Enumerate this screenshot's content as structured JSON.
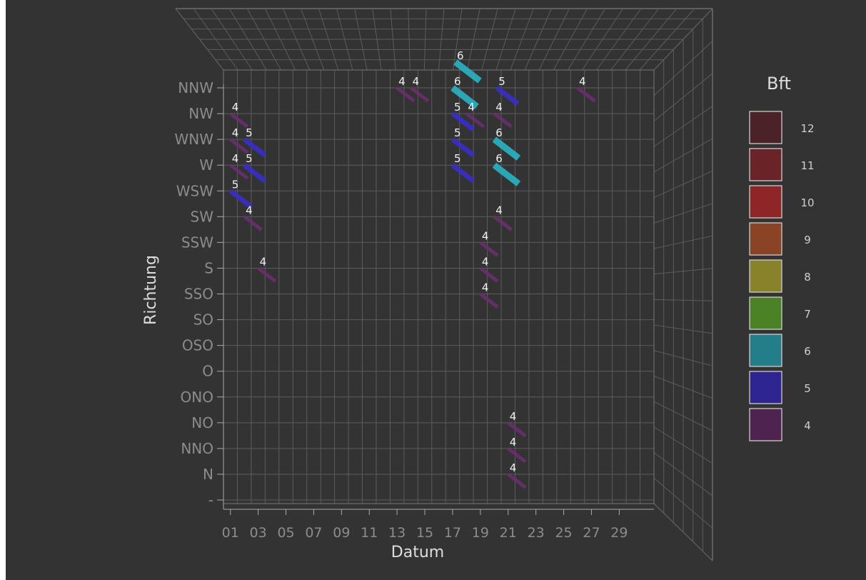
{
  "chart_data": {
    "type": "3d-bar",
    "xlabel": "Datum",
    "ylabel": "Richtung",
    "x_ticks": [
      "01",
      "03",
      "05",
      "07",
      "09",
      "11",
      "13",
      "15",
      "17",
      "19",
      "21",
      "23",
      "25",
      "27",
      "29"
    ],
    "y_ticks": [
      "-",
      "N",
      "NNO",
      "NO",
      "ONO",
      "O",
      "OSO",
      "SO",
      "SSO",
      "S",
      "SSW",
      "SW",
      "WSW",
      "W",
      "WNW",
      "NW",
      "NNW"
    ],
    "legend": {
      "title": "Bft",
      "placement": "right",
      "items": [
        {
          "label": "12",
          "color": "#4a2228"
        },
        {
          "label": "11",
          "color": "#6a2428"
        },
        {
          "label": "10",
          "color": "#8e2627"
        },
        {
          "label": "9",
          "color": "#8a4324"
        },
        {
          "label": "8",
          "color": "#88822a"
        },
        {
          "label": "7",
          "color": "#4a8225"
        },
        {
          "label": "6",
          "color": "#237e8a"
        },
        {
          "label": "5",
          "color": "#2f2590"
        },
        {
          "label": "4",
          "color": "#4e2350"
        }
      ]
    },
    "points": [
      {
        "day": 1,
        "dir": "NW",
        "bft": 4
      },
      {
        "day": 1,
        "dir": "WNW",
        "bft": 4
      },
      {
        "day": 1,
        "dir": "W",
        "bft": 4
      },
      {
        "day": 2,
        "dir": "WNW",
        "bft": 5
      },
      {
        "day": 2,
        "dir": "W",
        "bft": 5
      },
      {
        "day": 1,
        "dir": "WSW",
        "bft": 5
      },
      {
        "day": 2,
        "dir": "SW",
        "bft": 4
      },
      {
        "day": 3,
        "dir": "S",
        "bft": 4
      },
      {
        "day": 13,
        "dir": "NNW",
        "bft": 4
      },
      {
        "day": 14,
        "dir": "NNW",
        "bft": 4
      },
      {
        "day": 17,
        "dir": "NNW",
        "bft": 6
      },
      {
        "day": 17,
        "dir": "NNW",
        "bft": 6
      },
      {
        "day": 17,
        "dir": "NW",
        "bft": 5
      },
      {
        "day": 17,
        "dir": "WNW",
        "bft": 5
      },
      {
        "day": 17,
        "dir": "W",
        "bft": 5
      },
      {
        "day": 18,
        "dir": "NW",
        "bft": 4
      },
      {
        "day": 19,
        "dir": "SSW",
        "bft": 4
      },
      {
        "day": 19,
        "dir": "S",
        "bft": 4
      },
      {
        "day": 19,
        "dir": "SSO",
        "bft": 4
      },
      {
        "day": 20,
        "dir": "NW",
        "bft": 4
      },
      {
        "day": 20,
        "dir": "NW",
        "bft": 5
      },
      {
        "day": 20,
        "dir": "WNW",
        "bft": 6
      },
      {
        "day": 20,
        "dir": "W",
        "bft": 6
      },
      {
        "day": 20,
        "dir": "SW",
        "bft": 4
      },
      {
        "day": 21,
        "dir": "NO",
        "bft": 4
      },
      {
        "day": 21,
        "dir": "NNO",
        "bft": 4
      },
      {
        "day": 21,
        "dir": "N",
        "bft": 4
      },
      {
        "day": 26,
        "dir": "NNW",
        "bft": 4
      }
    ]
  }
}
